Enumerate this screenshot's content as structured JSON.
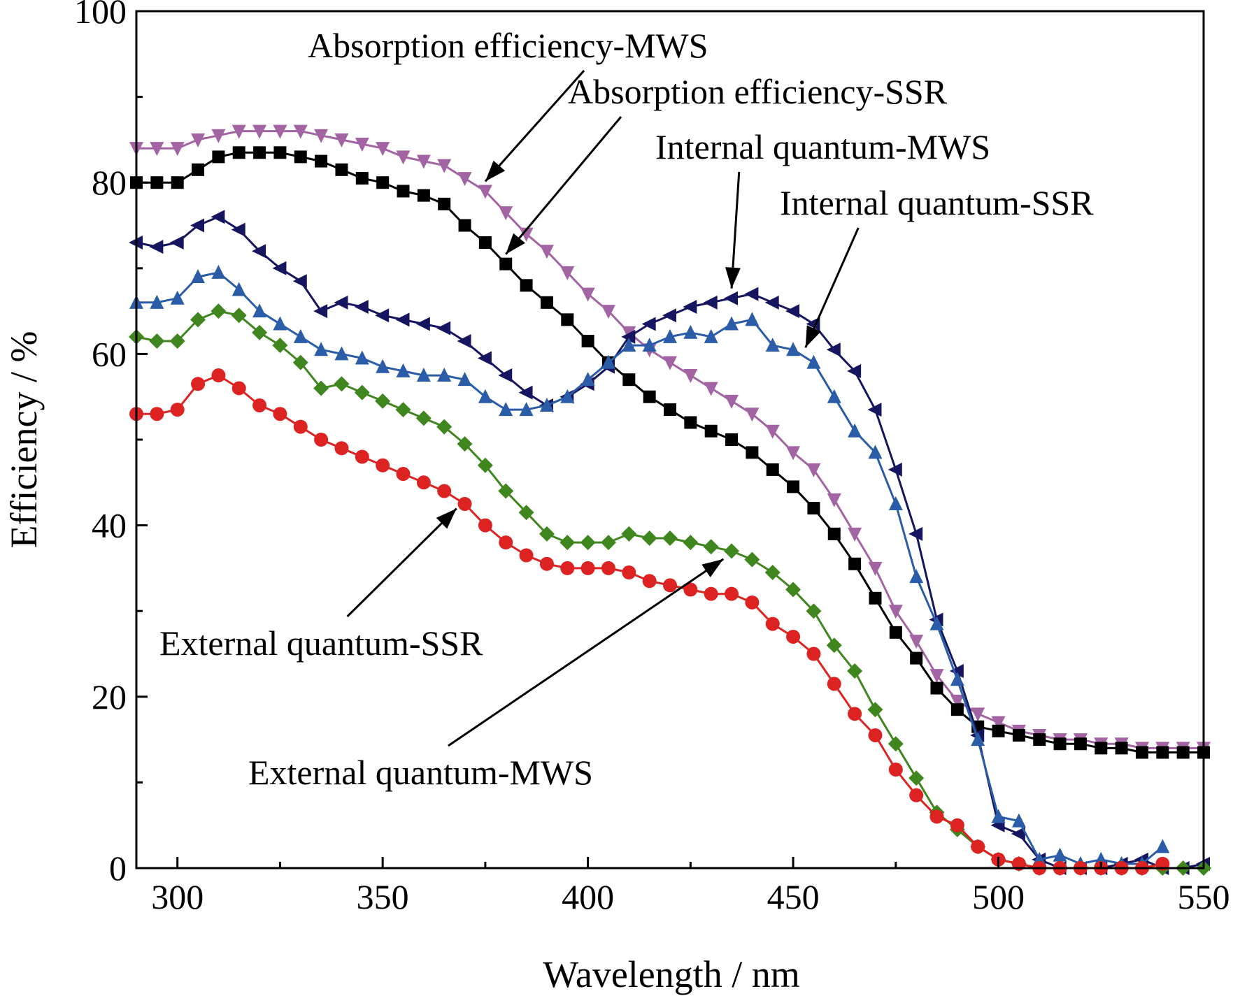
{
  "chart_data": {
    "type": "line",
    "xlabel": "Wavelength / nm",
    "ylabel": "Efficiency / %",
    "xlim": [
      290,
      550
    ],
    "ylim": [
      0,
      100
    ],
    "xticks": [
      300,
      350,
      400,
      450,
      500,
      550
    ],
    "yticks": [
      0,
      20,
      40,
      60,
      80,
      100
    ],
    "grid": false,
    "series": [
      {
        "name": "Absorption efficiency-MWS",
        "color": "#a364a3",
        "marker": "triangle-down",
        "x": [
          290,
          295,
          300,
          305,
          310,
          315,
          320,
          325,
          330,
          335,
          340,
          345,
          350,
          355,
          360,
          365,
          370,
          375,
          380,
          385,
          390,
          395,
          400,
          405,
          410,
          415,
          420,
          425,
          430,
          435,
          440,
          445,
          450,
          455,
          460,
          465,
          470,
          475,
          480,
          485,
          490,
          495,
          500,
          505,
          510,
          515,
          520,
          525,
          530,
          535,
          540,
          545,
          550
        ],
        "values": [
          84,
          84,
          84,
          85,
          85.5,
          86,
          86,
          86,
          86,
          85.5,
          85,
          84.5,
          84,
          83,
          82.5,
          82,
          80.5,
          79,
          76.5,
          74,
          72,
          69.5,
          67,
          65,
          62.5,
          60.5,
          59,
          57.5,
          56,
          54.5,
          53,
          51,
          48.5,
          46.5,
          43,
          39,
          35,
          30,
          26.5,
          22.5,
          19.5,
          18,
          17,
          16,
          15.5,
          15,
          15,
          14.5,
          14.5,
          14,
          14,
          14,
          14
        ]
      },
      {
        "name": "Absorption efficiency-SSR",
        "color": "#000000",
        "marker": "square",
        "x": [
          290,
          295,
          300,
          305,
          310,
          315,
          320,
          325,
          330,
          335,
          340,
          345,
          350,
          355,
          360,
          365,
          370,
          375,
          380,
          385,
          390,
          395,
          400,
          405,
          410,
          415,
          420,
          425,
          430,
          435,
          440,
          445,
          450,
          455,
          460,
          465,
          470,
          475,
          480,
          485,
          490,
          495,
          500,
          505,
          510,
          515,
          520,
          525,
          530,
          535,
          540,
          545,
          550
        ],
        "values": [
          80,
          80,
          80,
          81.5,
          83,
          83.5,
          83.5,
          83.5,
          83,
          82.5,
          81.5,
          80.5,
          80,
          79,
          78.5,
          77.5,
          75,
          73,
          70.5,
          68,
          66,
          64,
          61.5,
          59,
          57,
          55,
          53.5,
          52,
          51,
          50,
          48.5,
          46.5,
          44.5,
          42,
          39,
          35.5,
          31.5,
          27.5,
          24.5,
          21,
          18.5,
          16.5,
          16,
          15.5,
          15,
          14.5,
          14.5,
          14,
          14,
          13.5,
          13.5,
          13.5,
          13.5
        ]
      },
      {
        "name": "Internal quantum-MWS",
        "color": "#161660",
        "marker": "triangle-left",
        "x": [
          290,
          295,
          300,
          305,
          310,
          315,
          320,
          325,
          330,
          335,
          340,
          345,
          350,
          355,
          360,
          365,
          370,
          375,
          380,
          385,
          390,
          395,
          400,
          405,
          410,
          415,
          420,
          425,
          430,
          435,
          440,
          445,
          450,
          455,
          460,
          465,
          470,
          475,
          480,
          485,
          490,
          495,
          500,
          505,
          510,
          515,
          520,
          525,
          530,
          535,
          540,
          545,
          550
        ],
        "values": [
          73,
          72.5,
          73,
          75,
          76,
          74.5,
          72,
          70,
          68.5,
          65,
          66,
          65.5,
          64.5,
          64,
          63.5,
          63,
          61.5,
          59.5,
          57.5,
          55.5,
          54,
          55,
          56.5,
          58.5,
          62,
          63.5,
          64.5,
          65.5,
          66,
          66.5,
          67,
          66,
          65,
          63.5,
          60.5,
          58,
          53.5,
          46.5,
          39,
          29,
          23,
          15.5,
          5,
          4,
          1,
          0,
          0,
          0,
          0.5,
          1,
          0,
          0,
          0.5
        ]
      },
      {
        "name": "Internal quantum-SSR",
        "color": "#2a5ca8",
        "marker": "triangle-up",
        "x": [
          290,
          295,
          300,
          305,
          310,
          315,
          320,
          325,
          330,
          335,
          340,
          345,
          350,
          355,
          360,
          365,
          370,
          375,
          380,
          385,
          390,
          395,
          400,
          405,
          410,
          415,
          420,
          425,
          430,
          435,
          440,
          445,
          450,
          455,
          460,
          465,
          470,
          475,
          480,
          485,
          490,
          495,
          500,
          505,
          510,
          515,
          520,
          525,
          530,
          535,
          540
        ],
        "values": [
          66,
          66,
          66.5,
          69,
          69.5,
          67.5,
          65,
          63.5,
          62,
          60.5,
          60,
          59.5,
          58.5,
          58,
          57.5,
          57.5,
          57,
          55,
          53.5,
          53.5,
          54,
          55,
          57,
          59,
          61,
          61,
          62,
          62.5,
          62,
          63.5,
          64,
          61,
          60.5,
          59,
          55,
          51,
          48.5,
          42.5,
          34,
          28.5,
          22,
          15,
          6,
          5.5,
          1,
          1.5,
          0.5,
          1,
          0.5,
          0.5,
          2.5
        ]
      },
      {
        "name": "External quantum-MWS",
        "color": "#3f861e",
        "marker": "diamond",
        "x": [
          290,
          295,
          300,
          305,
          310,
          315,
          320,
          325,
          330,
          335,
          340,
          345,
          350,
          355,
          360,
          365,
          370,
          375,
          380,
          385,
          390,
          395,
          400,
          405,
          410,
          415,
          420,
          425,
          430,
          435,
          440,
          445,
          450,
          455,
          460,
          465,
          470,
          475,
          480,
          485,
          490,
          495,
          500,
          505,
          510,
          515,
          520,
          525,
          530,
          535,
          540,
          545,
          550
        ],
        "values": [
          62,
          61.5,
          61.5,
          64,
          65,
          64.5,
          62.5,
          61,
          59,
          56,
          56.5,
          55.5,
          54.5,
          53.5,
          52.5,
          51.5,
          49.5,
          47,
          44,
          41.5,
          39,
          38,
          38,
          38,
          39,
          38.5,
          38.5,
          38,
          37.5,
          37,
          36,
          34.5,
          32.5,
          30,
          26,
          23,
          18.5,
          14.5,
          10.5,
          6.5,
          4.5,
          2.5,
          1,
          0.5,
          0,
          0,
          0,
          0,
          0,
          0,
          0,
          0,
          0
        ]
      },
      {
        "name": "External quantum-SSR",
        "color": "#dd2222",
        "marker": "circle",
        "x": [
          290,
          295,
          300,
          305,
          310,
          315,
          320,
          325,
          330,
          335,
          340,
          345,
          350,
          355,
          360,
          365,
          370,
          375,
          380,
          385,
          390,
          395,
          400,
          405,
          410,
          415,
          420,
          425,
          430,
          435,
          440,
          445,
          450,
          455,
          460,
          465,
          470,
          475,
          480,
          485,
          490,
          495,
          500,
          505,
          510,
          515,
          520,
          525,
          530,
          535,
          540
        ],
        "values": [
          53,
          53,
          53.5,
          56.5,
          57.5,
          56,
          54,
          53,
          51.5,
          50,
          49,
          48,
          47,
          46,
          45,
          44,
          42.5,
          40,
          38,
          36.5,
          35.5,
          35,
          35,
          35,
          34.5,
          33.5,
          33,
          32.5,
          32,
          32,
          31,
          28.5,
          27,
          25,
          21.5,
          18,
          15.5,
          11.5,
          8.5,
          6,
          5,
          2.5,
          1,
          0.5,
          0,
          0,
          0,
          0,
          0,
          0,
          0.5
        ]
      }
    ],
    "annotations": [
      "Absorption efficiency-MWS",
      "Absorption efficiency-SSR",
      "Internal quantum-MWS",
      "Internal quantum-SSR",
      "External quantum-SSR",
      "External quantum-MWS"
    ]
  }
}
